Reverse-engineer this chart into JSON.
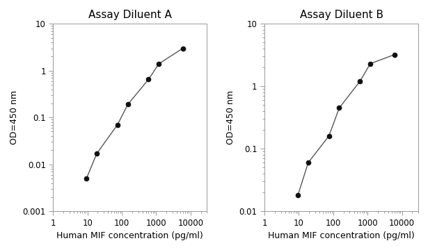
{
  "chart_A": {
    "title": "Assay Diluent A",
    "x": [
      9.375,
      18.75,
      75,
      150,
      600,
      1200,
      6000
    ],
    "y": [
      0.005,
      0.017,
      0.07,
      0.19,
      0.65,
      1.4,
      3.0
    ],
    "xlim": [
      1,
      30000
    ],
    "ylim": [
      0.001,
      10
    ],
    "yticks": [
      0.001,
      0.01,
      0.1,
      1,
      10
    ],
    "ytick_labels": [
      "0.001",
      "0.01",
      "0.1",
      "1",
      "10"
    ],
    "xticks": [
      1,
      10,
      100,
      1000,
      10000
    ],
    "xtick_labels": [
      "1",
      "10",
      "100",
      "1000",
      "10000"
    ],
    "xlabel": "Human MIF concentration (pg/ml)",
    "ylabel": "OD=450 nm"
  },
  "chart_B": {
    "title": "Assay Diluent B",
    "x": [
      9.375,
      18.75,
      75,
      150,
      600,
      1200,
      6000
    ],
    "y": [
      0.018,
      0.06,
      0.16,
      0.45,
      1.2,
      2.3,
      3.2
    ],
    "xlim": [
      1,
      30000
    ],
    "ylim": [
      0.01,
      10
    ],
    "yticks": [
      0.01,
      0.1,
      1,
      10
    ],
    "ytick_labels": [
      "0.01",
      "0.1",
      "1",
      "10"
    ],
    "xticks": [
      1,
      10,
      100,
      1000,
      10000
    ],
    "xtick_labels": [
      "1",
      "10",
      "100",
      "1000",
      "10000"
    ],
    "xlabel": "Human MIF concentration (pg/ml)",
    "ylabel": "OD=450 nm"
  },
  "line_color": "#555555",
  "marker_color": "#111111",
  "marker_size": 4.5,
  "title_fontsize": 11,
  "label_fontsize": 9,
  "tick_fontsize": 8.5,
  "background_color": "#ffffff"
}
